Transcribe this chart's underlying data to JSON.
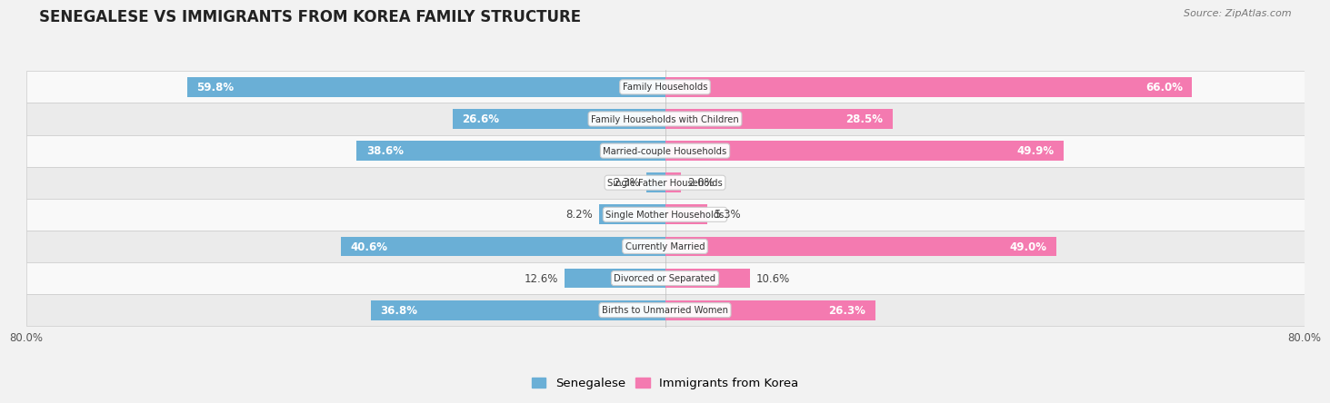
{
  "title": "SENEGALESE VS IMMIGRANTS FROM KOREA FAMILY STRUCTURE",
  "source": "Source: ZipAtlas.com",
  "categories": [
    "Family Households",
    "Family Households with Children",
    "Married-couple Households",
    "Single Father Households",
    "Single Mother Households",
    "Currently Married",
    "Divorced or Separated",
    "Births to Unmarried Women"
  ],
  "senegalese": [
    59.8,
    26.6,
    38.6,
    2.3,
    8.2,
    40.6,
    12.6,
    36.8
  ],
  "korea": [
    66.0,
    28.5,
    49.9,
    2.0,
    5.3,
    49.0,
    10.6,
    26.3
  ],
  "max_val": 80.0,
  "bar_height": 0.62,
  "senegalese_color": "#6aafd6",
  "korea_color": "#f47ab0",
  "bg_color": "#f2f2f2",
  "row_bg_light": "#f9f9f9",
  "row_bg_dark": "#ebebeb",
  "inside_label_threshold": 15,
  "label_fontsize": 8.5,
  "title_fontsize": 12,
  "legend_fontsize": 9.5
}
